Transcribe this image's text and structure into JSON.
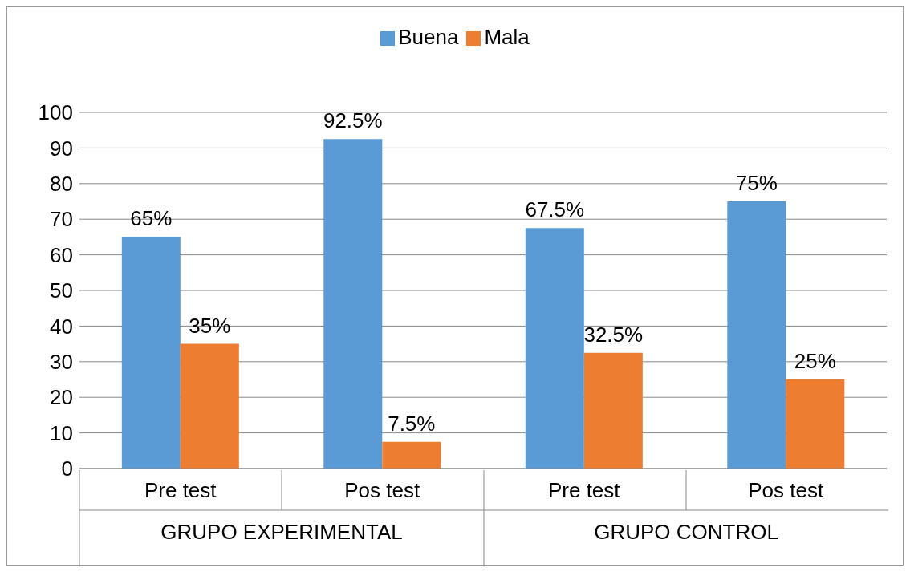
{
  "chart_data": {
    "type": "bar",
    "categories": [
      "Pre test",
      "Pos test",
      "Pre test",
      "Pos test"
    ],
    "series": [
      {
        "name": "Buena",
        "color": "#5b9bd5",
        "values": [
          65,
          92.5,
          67.5,
          75
        ],
        "value_labels": [
          "65%",
          "92.5%",
          "67.5%",
          "75%"
        ]
      },
      {
        "name": "Mala",
        "color": "#ed7d31",
        "values": [
          35,
          7.5,
          32.5,
          25
        ],
        "value_labels": [
          "35%",
          "7.5%",
          "32.5%",
          "25%"
        ]
      }
    ],
    "annotations": [
      "GRUPO EXPERIMENTAL",
      "GRUPO CONTROL"
    ],
    "ylim": [
      0,
      100
    ],
    "yticks": [
      0,
      10,
      20,
      30,
      40,
      50,
      60,
      70,
      80,
      90,
      100
    ],
    "grid": "y",
    "legend": "top"
  }
}
